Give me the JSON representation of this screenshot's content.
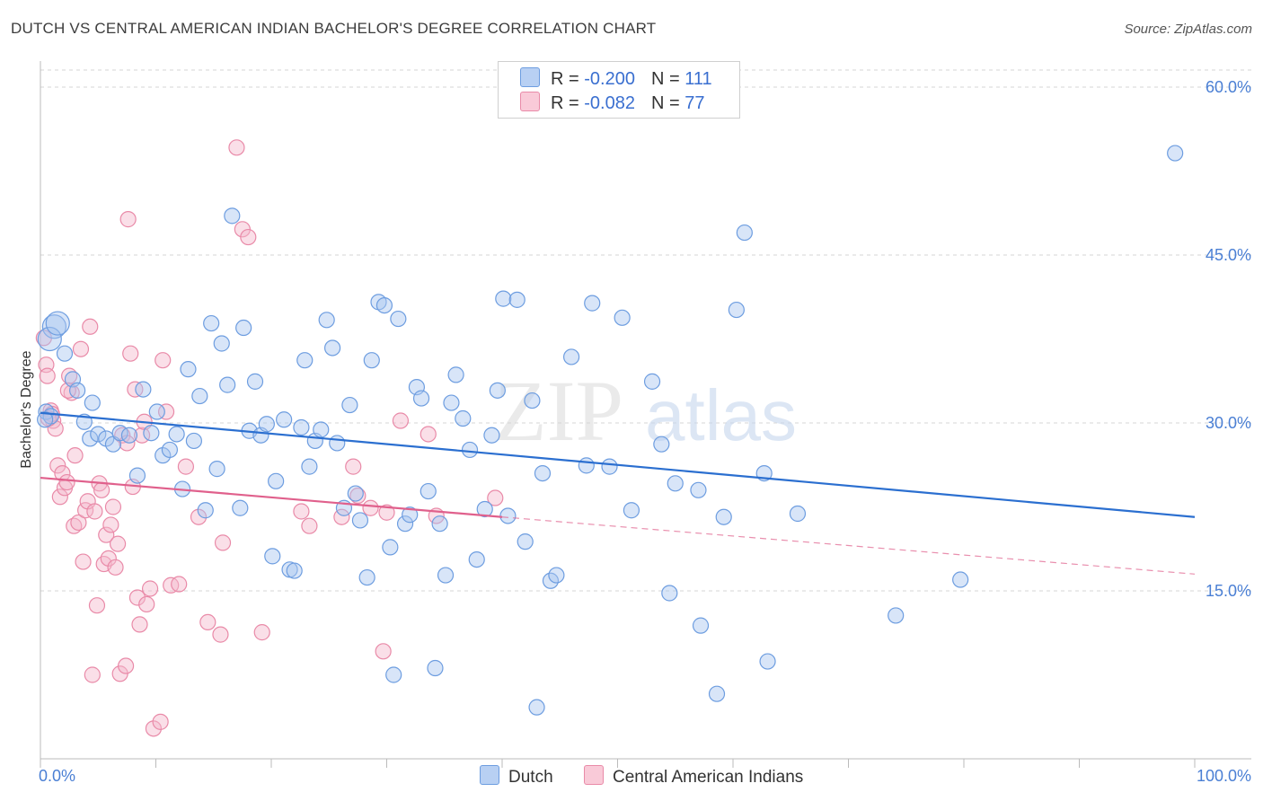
{
  "title": "DUTCH VS CENTRAL AMERICAN INDIAN BACHELOR'S DEGREE CORRELATION CHART",
  "source": "Source: ZipAtlas.com",
  "watermark": {
    "zip": "ZIP",
    "atlas": "atlas"
  },
  "legend": {
    "dutch": {
      "r_label": "R = ",
      "r_value": "-0.200",
      "n_label": "N = ",
      "n_value": "111"
    },
    "cai": {
      "r_label": "R = ",
      "r_value": "-0.082",
      "n_label": "N = ",
      "n_value": "77"
    }
  },
  "colors": {
    "dutch_fill": "#a9c6f0",
    "dutch_stroke": "#6d9de0",
    "dutch_line": "#2b6fd0",
    "cai_fill": "#f5b8cb",
    "cai_stroke": "#e98aa8",
    "cai_line": "#e0608c"
  },
  "chart_data": {
    "type": "scatter",
    "title": "DUTCH VS CENTRAL AMERICAN INDIAN BACHELOR'S DEGREE CORRELATION CHART",
    "xlabel": "",
    "ylabel": "Bachelor's Degree",
    "xlim": [
      0,
      100
    ],
    "ylim": [
      0,
      60
    ],
    "x_tick_labels": [
      "0.0%",
      "100.0%"
    ],
    "y_ticks": [
      15,
      30,
      45,
      60
    ],
    "y_tick_labels": [
      "15.0%",
      "30.0%",
      "45.0%",
      "60.0%"
    ],
    "series": [
      {
        "name": "Dutch",
        "trend": {
          "x": [
            0,
            100
          ],
          "y": [
            30.9,
            21.6
          ]
        },
        "points": [
          [
            1.2,
            38.6
          ],
          [
            0.8,
            37.5
          ],
          [
            1.5,
            38.9
          ],
          [
            2.1,
            36.2
          ],
          [
            2.8,
            33.9
          ],
          [
            3.2,
            32.9
          ],
          [
            0.5,
            31.0
          ],
          [
            0.9,
            30.6
          ],
          [
            3.8,
            30.1
          ],
          [
            4.3,
            28.6
          ],
          [
            5.0,
            29.0
          ],
          [
            5.7,
            28.6
          ],
          [
            6.3,
            28.1
          ],
          [
            6.9,
            29.1
          ],
          [
            7.7,
            28.9
          ],
          [
            8.4,
            25.3
          ],
          [
            8.9,
            33.0
          ],
          [
            9.6,
            29.1
          ],
          [
            10.1,
            31.0
          ],
          [
            10.6,
            27.1
          ],
          [
            11.2,
            27.6
          ],
          [
            11.8,
            29.0
          ],
          [
            12.3,
            24.1
          ],
          [
            12.8,
            34.8
          ],
          [
            13.3,
            28.4
          ],
          [
            13.8,
            32.4
          ],
          [
            14.3,
            22.2
          ],
          [
            14.8,
            38.9
          ],
          [
            15.3,
            25.9
          ],
          [
            15.7,
            37.1
          ],
          [
            16.2,
            33.4
          ],
          [
            16.6,
            48.5
          ],
          [
            17.3,
            22.4
          ],
          [
            17.6,
            38.5
          ],
          [
            18.1,
            29.3
          ],
          [
            18.6,
            33.7
          ],
          [
            19.1,
            28.9
          ],
          [
            19.6,
            29.9
          ],
          [
            20.1,
            18.1
          ],
          [
            20.4,
            24.8
          ],
          [
            21.1,
            30.3
          ],
          [
            21.6,
            16.9
          ],
          [
            22.0,
            16.8
          ],
          [
            22.6,
            29.6
          ],
          [
            22.9,
            35.6
          ],
          [
            23.3,
            26.1
          ],
          [
            23.8,
            28.4
          ],
          [
            24.3,
            29.4
          ],
          [
            24.8,
            39.2
          ],
          [
            25.3,
            36.7
          ],
          [
            25.7,
            28.2
          ],
          [
            26.3,
            22.4
          ],
          [
            26.8,
            31.6
          ],
          [
            27.3,
            23.7
          ],
          [
            27.7,
            21.3
          ],
          [
            28.3,
            16.2
          ],
          [
            28.7,
            35.6
          ],
          [
            29.3,
            40.8
          ],
          [
            29.8,
            40.5
          ],
          [
            30.3,
            18.9
          ],
          [
            30.6,
            7.5
          ],
          [
            31.0,
            39.3
          ],
          [
            31.6,
            21.0
          ],
          [
            32.0,
            21.8
          ],
          [
            32.6,
            33.2
          ],
          [
            33.0,
            32.2
          ],
          [
            33.6,
            23.9
          ],
          [
            34.2,
            8.1
          ],
          [
            34.6,
            21.0
          ],
          [
            35.1,
            16.4
          ],
          [
            35.6,
            31.8
          ],
          [
            36.0,
            34.3
          ],
          [
            36.6,
            30.4
          ],
          [
            37.2,
            27.6
          ],
          [
            37.8,
            17.8
          ],
          [
            38.5,
            22.3
          ],
          [
            39.1,
            28.9
          ],
          [
            39.6,
            32.9
          ],
          [
            40.1,
            41.1
          ],
          [
            40.5,
            21.7
          ],
          [
            41.3,
            41.0
          ],
          [
            42.0,
            19.4
          ],
          [
            42.6,
            32.0
          ],
          [
            43.0,
            4.6
          ],
          [
            43.5,
            25.5
          ],
          [
            44.2,
            15.9
          ],
          [
            44.7,
            16.4
          ],
          [
            46.0,
            35.9
          ],
          [
            47.3,
            26.2
          ],
          [
            47.8,
            40.7
          ],
          [
            49.3,
            26.1
          ],
          [
            50.4,
            39.4
          ],
          [
            51.2,
            22.2
          ],
          [
            53.0,
            33.7
          ],
          [
            53.8,
            28.1
          ],
          [
            54.5,
            14.8
          ],
          [
            55.0,
            24.6
          ],
          [
            57.2,
            11.9
          ],
          [
            58.6,
            5.8
          ],
          [
            59.2,
            21.6
          ],
          [
            60.3,
            40.1
          ],
          [
            61.0,
            47.0
          ],
          [
            62.7,
            25.5
          ],
          [
            63.0,
            8.7
          ],
          [
            65.6,
            21.9
          ],
          [
            74.1,
            12.8
          ],
          [
            79.7,
            16.0
          ],
          [
            98.3,
            54.1
          ],
          [
            0.4,
            30.3
          ],
          [
            4.5,
            31.8
          ],
          [
            57.0,
            24.0
          ]
        ]
      },
      {
        "name": "Central American Indians",
        "trend": {
          "x": [
            0,
            40
          ],
          "y": [
            25.1,
            21.6
          ]
        },
        "trend_dashed": {
          "x": [
            40,
            100
          ],
          "y": [
            21.6,
            16.5
          ]
        },
        "points": [
          [
            0.3,
            37.6
          ],
          [
            0.5,
            35.2
          ],
          [
            0.6,
            34.2
          ],
          [
            0.9,
            31.1
          ],
          [
            1.1,
            30.2
          ],
          [
            1.3,
            29.5
          ],
          [
            1.5,
            26.2
          ],
          [
            1.7,
            23.4
          ],
          [
            1.9,
            25.5
          ],
          [
            2.1,
            24.2
          ],
          [
            2.3,
            24.7
          ],
          [
            2.5,
            34.2
          ],
          [
            2.7,
            32.7
          ],
          [
            2.9,
            20.8
          ],
          [
            3.0,
            27.1
          ],
          [
            3.3,
            21.1
          ],
          [
            3.5,
            36.6
          ],
          [
            3.7,
            17.6
          ],
          [
            3.9,
            22.2
          ],
          [
            4.1,
            23.0
          ],
          [
            4.3,
            38.6
          ],
          [
            4.5,
            7.5
          ],
          [
            4.7,
            22.1
          ],
          [
            4.9,
            13.7
          ],
          [
            5.1,
            24.6
          ],
          [
            5.3,
            24.0
          ],
          [
            5.5,
            17.4
          ],
          [
            5.7,
            20.0
          ],
          [
            5.9,
            17.9
          ],
          [
            6.1,
            20.9
          ],
          [
            6.3,
            22.5
          ],
          [
            6.5,
            17.1
          ],
          [
            6.7,
            19.2
          ],
          [
            6.9,
            7.6
          ],
          [
            7.1,
            28.9
          ],
          [
            7.4,
            8.3
          ],
          [
            7.5,
            28.2
          ],
          [
            7.6,
            48.2
          ],
          [
            7.8,
            36.2
          ],
          [
            8.0,
            24.3
          ],
          [
            8.2,
            33.0
          ],
          [
            8.4,
            14.4
          ],
          [
            8.6,
            12.0
          ],
          [
            8.8,
            28.9
          ],
          [
            9.0,
            30.1
          ],
          [
            9.2,
            13.8
          ],
          [
            9.5,
            15.2
          ],
          [
            9.8,
            2.7
          ],
          [
            10.4,
            3.3
          ],
          [
            10.6,
            35.6
          ],
          [
            10.9,
            31.0
          ],
          [
            11.3,
            15.5
          ],
          [
            12.0,
            15.6
          ],
          [
            12.6,
            26.1
          ],
          [
            13.7,
            21.6
          ],
          [
            14.5,
            12.2
          ],
          [
            15.6,
            11.1
          ],
          [
            15.8,
            19.3
          ],
          [
            17.0,
            54.6
          ],
          [
            17.5,
            47.3
          ],
          [
            18.0,
            46.6
          ],
          [
            19.2,
            11.3
          ],
          [
            22.6,
            22.1
          ],
          [
            23.3,
            20.8
          ],
          [
            26.1,
            21.6
          ],
          [
            27.1,
            26.1
          ],
          [
            27.5,
            23.5
          ],
          [
            28.6,
            22.4
          ],
          [
            29.7,
            9.6
          ],
          [
            30.0,
            22.0
          ],
          [
            31.2,
            30.2
          ],
          [
            33.6,
            29.0
          ],
          [
            34.3,
            21.7
          ],
          [
            39.4,
            23.3
          ],
          [
            1.0,
            30.8
          ],
          [
            2.4,
            32.9
          ],
          [
            0.7,
            30.4
          ]
        ]
      }
    ]
  },
  "bottom_legend": {
    "dutch": "Dutch",
    "cai": "Central American Indians"
  }
}
